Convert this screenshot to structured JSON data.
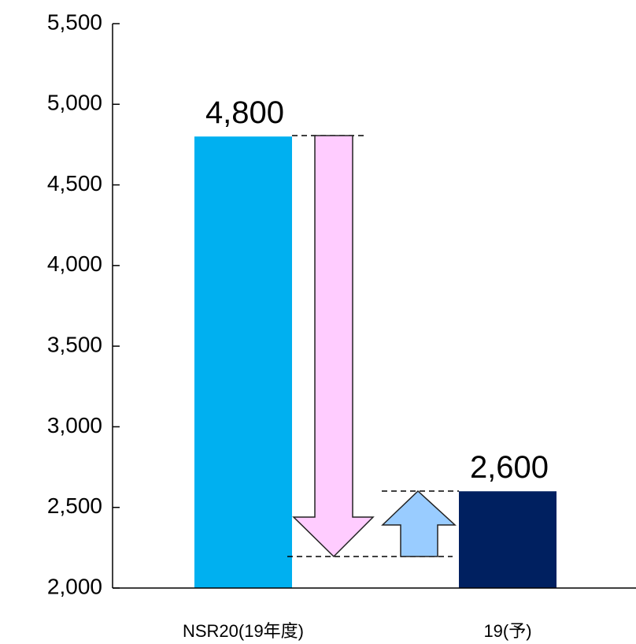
{
  "chart_data": {
    "type": "bar",
    "categories": [
      "NSR20(19年度)",
      "19(予)"
    ],
    "values": [
      4800,
      2600
    ],
    "value_labels": [
      "4,800",
      "2,600"
    ],
    "colors": [
      "#00b0f0",
      "#002060"
    ],
    "ylim": [
      2000,
      5500
    ],
    "yticks": [
      {
        "value": 2000,
        "label": "2,000"
      },
      {
        "value": 2500,
        "label": "2,500"
      },
      {
        "value": 3000,
        "label": "3,000"
      },
      {
        "value": 3500,
        "label": "3,500"
      },
      {
        "value": 4000,
        "label": "4,000"
      },
      {
        "value": 4500,
        "label": "4,500"
      },
      {
        "value": 5000,
        "label": "5,000"
      },
      {
        "value": 5500,
        "label": "5,500"
      }
    ],
    "grid": false
  }
}
